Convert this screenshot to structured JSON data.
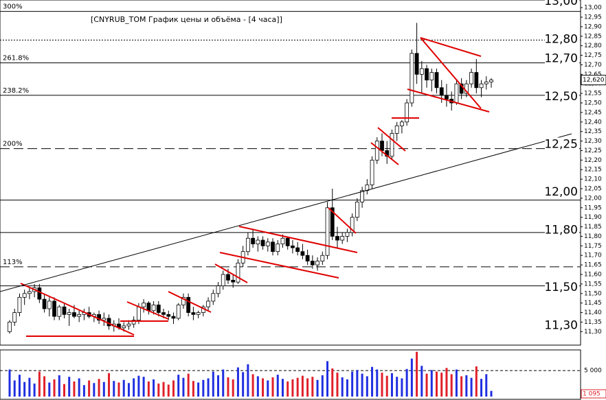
{
  "chart_data": {
    "type": "candlestick",
    "title": "[CNYRUB_TOM График цены и объёма - [4 часа]]",
    "ylim": [
      11.24,
      13.04
    ],
    "yticks": [
      {
        "value": 11.3,
        "label": "11,30"
      },
      {
        "value": 11.35,
        "label": "11,35"
      },
      {
        "value": 11.4,
        "label": "11,40"
      },
      {
        "value": 11.45,
        "label": "11,45"
      },
      {
        "value": 11.5,
        "label": "11,50"
      },
      {
        "value": 11.55,
        "label": "11,55"
      },
      {
        "value": 11.6,
        "label": "11,60"
      },
      {
        "value": 11.65,
        "label": "11,65"
      },
      {
        "value": 11.7,
        "label": "11,70"
      },
      {
        "value": 11.75,
        "label": "11,75"
      },
      {
        "value": 11.8,
        "label": "11,80"
      },
      {
        "value": 11.85,
        "label": "11,85"
      },
      {
        "value": 11.9,
        "label": "11,90"
      },
      {
        "value": 11.95,
        "label": "11,95"
      },
      {
        "value": 12.0,
        "label": "12,00"
      },
      {
        "value": 12.05,
        "label": "12,05"
      },
      {
        "value": 12.1,
        "label": "12,10"
      },
      {
        "value": 12.15,
        "label": "12,15"
      },
      {
        "value": 12.2,
        "label": "12,20"
      },
      {
        "value": 12.25,
        "label": "12,25"
      },
      {
        "value": 12.3,
        "label": "12,30"
      },
      {
        "value": 12.35,
        "label": "12,35"
      },
      {
        "value": 12.4,
        "label": "12,40"
      },
      {
        "value": 12.45,
        "label": "12,45"
      },
      {
        "value": 12.5,
        "label": "12,50"
      },
      {
        "value": 12.55,
        "label": "12,55"
      },
      {
        "value": 12.6,
        "label": "12,60"
      },
      {
        "value": 12.65,
        "label": "12,65"
      },
      {
        "value": 12.7,
        "label": "12,70"
      },
      {
        "value": 12.75,
        "label": "12,75"
      },
      {
        "value": 12.8,
        "label": "12,80"
      },
      {
        "value": 12.85,
        "label": "12,85"
      },
      {
        "value": 12.9,
        "label": "12,90"
      },
      {
        "value": 12.95,
        "label": "12,95"
      },
      {
        "value": 13.0,
        "label": "13,00"
      }
    ],
    "price_labels": [
      {
        "value": 13.0,
        "label": "13,00"
      },
      {
        "value": 12.8,
        "label": "12,80"
      },
      {
        "value": 12.7,
        "label": "12,70"
      },
      {
        "value": 12.5,
        "label": "12,50"
      },
      {
        "value": 12.25,
        "label": "12,25"
      },
      {
        "value": 12.0,
        "label": "12,00"
      },
      {
        "value": 11.8,
        "label": "11,80"
      },
      {
        "value": 11.5,
        "label": "11,50"
      },
      {
        "value": 11.3,
        "label": "11,30"
      }
    ],
    "levels": [
      {
        "value": 12.98,
        "style": "solid",
        "label": "300%"
      },
      {
        "value": 12.83,
        "style": "dotted"
      },
      {
        "value": 12.71,
        "style": "solid",
        "label": "261.8%"
      },
      {
        "value": 12.54,
        "style": "solid",
        "label": "238.2%"
      },
      {
        "value": 12.26,
        "style": "dashed",
        "label": "200%"
      },
      {
        "value": 11.99,
        "style": "solid"
      },
      {
        "value": 11.82,
        "style": "solid"
      },
      {
        "value": 11.64,
        "style": "dashed",
        "label": "113%"
      },
      {
        "value": 11.54,
        "style": "solid"
      }
    ],
    "close_label": "12,620",
    "ohlc": [
      [
        11.3,
        11.36,
        11.29,
        11.35
      ],
      [
        11.35,
        11.42,
        11.33,
        11.4
      ],
      [
        11.4,
        11.5,
        11.38,
        11.48
      ],
      [
        11.48,
        11.52,
        11.44,
        11.5
      ],
      [
        11.5,
        11.53,
        11.47,
        11.51
      ],
      [
        11.51,
        11.55,
        11.48,
        11.53
      ],
      [
        11.53,
        11.55,
        11.45,
        11.47
      ],
      [
        11.47,
        11.5,
        11.4,
        11.42
      ],
      [
        11.42,
        11.48,
        11.38,
        11.46
      ],
      [
        11.46,
        11.48,
        11.36,
        11.38
      ],
      [
        11.38,
        11.44,
        11.36,
        11.43
      ],
      [
        11.43,
        11.45,
        11.37,
        11.39
      ],
      [
        11.39,
        11.42,
        11.33,
        11.4
      ],
      [
        11.4,
        11.44,
        11.37,
        11.38
      ],
      [
        11.38,
        11.41,
        11.35,
        11.39
      ],
      [
        11.39,
        11.42,
        11.36,
        11.4
      ],
      [
        11.4,
        11.43,
        11.37,
        11.38
      ],
      [
        11.38,
        11.4,
        11.35,
        11.39
      ],
      [
        11.39,
        11.41,
        11.34,
        11.36
      ],
      [
        11.36,
        11.4,
        11.33,
        11.37
      ],
      [
        11.37,
        11.39,
        11.31,
        11.33
      ],
      [
        11.33,
        11.36,
        11.3,
        11.34
      ],
      [
        11.34,
        11.37,
        11.31,
        11.32
      ],
      [
        11.32,
        11.35,
        11.3,
        11.33
      ],
      [
        11.33,
        11.36,
        11.31,
        11.34
      ],
      [
        11.34,
        11.38,
        11.32,
        11.36
      ],
      [
        11.36,
        11.45,
        11.34,
        11.43
      ],
      [
        11.43,
        11.47,
        11.4,
        11.45
      ],
      [
        11.45,
        11.46,
        11.39,
        11.41
      ],
      [
        11.41,
        11.46,
        11.39,
        11.44
      ],
      [
        11.44,
        11.46,
        11.38,
        11.4
      ],
      [
        11.4,
        11.42,
        11.37,
        11.39
      ],
      [
        11.39,
        11.41,
        11.36,
        11.38
      ],
      [
        11.38,
        11.4,
        11.34,
        11.37
      ],
      [
        11.37,
        11.45,
        11.36,
        11.44
      ],
      [
        11.44,
        11.5,
        11.42,
        11.48
      ],
      [
        11.48,
        11.5,
        11.38,
        11.4
      ],
      [
        11.4,
        11.43,
        11.36,
        11.39
      ],
      [
        11.39,
        11.41,
        11.37,
        11.4
      ],
      [
        11.4,
        11.44,
        11.38,
        11.43
      ],
      [
        11.43,
        11.48,
        11.41,
        11.46
      ],
      [
        11.46,
        11.52,
        11.44,
        11.5
      ],
      [
        11.5,
        11.56,
        11.48,
        11.54
      ],
      [
        11.54,
        11.62,
        11.52,
        11.6
      ],
      [
        11.6,
        11.63,
        11.55,
        11.57
      ],
      [
        11.57,
        11.6,
        11.53,
        11.56
      ],
      [
        11.56,
        11.68,
        11.55,
        11.66
      ],
      [
        11.66,
        11.75,
        11.64,
        11.72
      ],
      [
        11.72,
        11.82,
        11.7,
        11.79
      ],
      [
        11.79,
        11.84,
        11.74,
        11.76
      ],
      [
        11.76,
        11.8,
        11.72,
        11.78
      ],
      [
        11.78,
        11.8,
        11.73,
        11.75
      ],
      [
        11.75,
        11.79,
        11.72,
        11.77
      ],
      [
        11.77,
        11.79,
        11.7,
        11.72
      ],
      [
        11.72,
        11.78,
        11.7,
        11.76
      ],
      [
        11.76,
        11.81,
        11.74,
        11.79
      ],
      [
        11.79,
        11.8,
        11.73,
        11.75
      ],
      [
        11.75,
        11.78,
        11.71,
        11.74
      ],
      [
        11.74,
        11.77,
        11.7,
        11.72
      ],
      [
        11.72,
        11.76,
        11.68,
        11.7
      ],
      [
        11.7,
        11.73,
        11.65,
        11.67
      ],
      [
        11.67,
        11.7,
        11.63,
        11.65
      ],
      [
        11.65,
        11.69,
        11.62,
        11.67
      ],
      [
        11.67,
        11.72,
        11.65,
        11.7
      ],
      [
        11.7,
        11.98,
        11.68,
        11.95
      ],
      [
        11.95,
        12.05,
        11.78,
        11.8
      ],
      [
        11.8,
        11.85,
        11.74,
        11.78
      ],
      [
        11.78,
        11.82,
        11.76,
        11.8
      ],
      [
        11.8,
        11.84,
        11.77,
        11.82
      ],
      [
        11.82,
        11.92,
        11.8,
        11.9
      ],
      [
        11.9,
        12.0,
        11.88,
        11.98
      ],
      [
        11.98,
        12.06,
        11.95,
        12.04
      ],
      [
        12.04,
        12.1,
        12.02,
        12.07
      ],
      [
        12.07,
        12.22,
        12.05,
        12.2
      ],
      [
        12.2,
        12.32,
        12.18,
        12.3
      ],
      [
        12.3,
        12.34,
        12.22,
        12.25
      ],
      [
        12.25,
        12.3,
        12.18,
        12.22
      ],
      [
        12.22,
        12.36,
        12.2,
        12.34
      ],
      [
        12.34,
        12.4,
        12.3,
        12.38
      ],
      [
        12.38,
        12.41,
        12.34,
        12.4
      ],
      [
        12.4,
        12.52,
        12.38,
        12.5
      ],
      [
        12.5,
        12.78,
        12.48,
        12.76
      ],
      [
        12.76,
        12.92,
        12.6,
        12.65
      ],
      [
        12.65,
        12.72,
        12.55,
        12.68
      ],
      [
        12.68,
        12.7,
        12.58,
        12.62
      ],
      [
        12.62,
        12.68,
        12.56,
        12.66
      ],
      [
        12.66,
        12.68,
        12.55,
        12.58
      ],
      [
        12.58,
        12.62,
        12.5,
        12.54
      ],
      [
        12.54,
        12.6,
        12.48,
        12.52
      ],
      [
        12.52,
        12.56,
        12.46,
        12.5
      ],
      [
        12.5,
        12.62,
        12.49,
        12.6
      ],
      [
        12.6,
        12.63,
        12.52,
        12.55
      ],
      [
        12.55,
        12.62,
        12.53,
        12.6
      ],
      [
        12.6,
        12.68,
        12.58,
        12.66
      ],
      [
        12.66,
        12.73,
        12.55,
        12.58
      ],
      [
        12.58,
        12.62,
        12.53,
        12.6
      ],
      [
        12.6,
        12.64,
        12.57,
        12.61
      ],
      [
        12.61,
        12.63,
        12.58,
        12.62
      ]
    ],
    "volume": {
      "ylim": [
        0,
        8700
      ],
      "yticks": [
        {
          "value": 5000,
          "label": "5 000"
        }
      ],
      "values": [
        5200,
        3100,
        4200,
        2800,
        3600,
        2500,
        4800,
        3900,
        2700,
        3300,
        4100,
        2400,
        3800,
        2900,
        3500,
        2200,
        3100,
        2600,
        3400,
        2800,
        4500,
        3000,
        2700,
        3200,
        2600,
        3500,
        4000,
        3800,
        2900,
        3300,
        2500,
        2800,
        2300,
        3100,
        4200,
        3600,
        4400,
        3000,
        2700,
        3200,
        3500,
        4800,
        4100,
        5200,
        3700,
        3300,
        5600,
        4700,
        6200,
        4300,
        3900,
        3500,
        3100,
        3700,
        4200,
        3400,
        2900,
        3300,
        3600,
        4000,
        3500,
        3800,
        3200,
        4100,
        6800,
        5400,
        4600,
        3700,
        3300,
        4800,
        5100,
        4400,
        3900,
        5700,
        5200,
        4600,
        4000,
        4500,
        3800,
        3500,
        5300,
        7300,
        8600,
        5900,
        4400,
        5100,
        4800,
        4600,
        5500,
        4300,
        5200,
        3900,
        4100,
        3600,
        5800,
        3400,
        4300,
        1095
      ],
      "value_labels": [
        null,
        null,
        null,
        null,
        null,
        null,
        null,
        null,
        null,
        null,
        null,
        null,
        null,
        null,
        null,
        null,
        null,
        null,
        null,
        null,
        null,
        null,
        null,
        null,
        null,
        null,
        null,
        null,
        null,
        null,
        null,
        null,
        null,
        null,
        null,
        null,
        null,
        null,
        null,
        null,
        null,
        null,
        null,
        null,
        null,
        null,
        null,
        null,
        null,
        null,
        null,
        null,
        null,
        null,
        null,
        null,
        null,
        null,
        null,
        null,
        null,
        null,
        null,
        null,
        null,
        null,
        null,
        null,
        null,
        null,
        null,
        null,
        null,
        null,
        null,
        null,
        null,
        null,
        null,
        null,
        null,
        null,
        null,
        null,
        null,
        null,
        null,
        null,
        null,
        null,
        null,
        null,
        null,
        null,
        null,
        null,
        null,
        "1 095"
      ]
    }
  }
}
